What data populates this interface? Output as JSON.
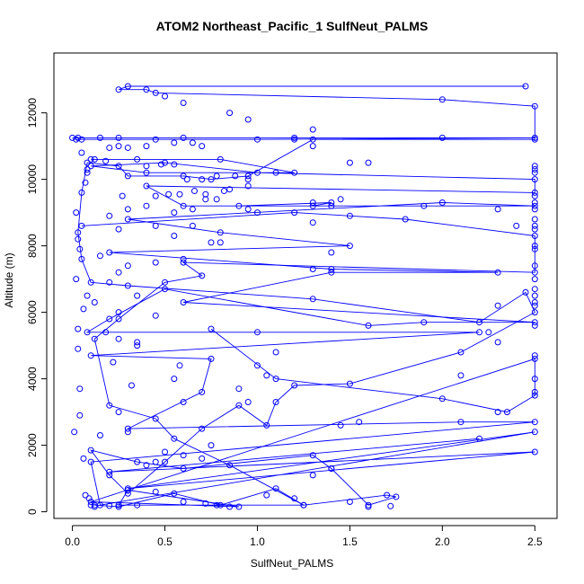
{
  "chart_data": {
    "type": "line",
    "title": "ATOM2 Northeast_Pacific_1 SulfNeut_PALMS",
    "xlabel": "SulfNeut_PALMS",
    "ylabel": "Altitude (m)",
    "xlim": [
      -0.1,
      2.62
    ],
    "ylim": [
      -200,
      13800
    ],
    "x_ticks": [
      0.0,
      0.5,
      1.0,
      1.5,
      2.0,
      2.5
    ],
    "x_tick_labels": [
      "0.0",
      "0.5",
      "1.0",
      "1.5",
      "2.0",
      "2.5"
    ],
    "y_ticks": [
      0,
      2000,
      4000,
      6000,
      8000,
      10000,
      12000
    ],
    "y_tick_labels": [
      "0",
      "2000",
      "4000",
      "6000",
      "8000",
      "10000",
      "12000"
    ],
    "grid": false,
    "legend": "none",
    "series_color": "#0000ff",
    "marker": "open-circle",
    "series": [
      {
        "points": [
          [
            0.12,
            200
          ],
          [
            0.25,
            150
          ],
          [
            0.55,
            550
          ],
          [
            0.8,
            200
          ],
          [
            1.1,
            700
          ],
          [
            1.25,
            200
          ],
          [
            1.7,
            500
          ],
          [
            1.75,
            450
          ],
          [
            1.6,
            200
          ],
          [
            1.4,
            1300
          ],
          [
            1.3,
            1700
          ],
          [
            0.6,
            1300
          ],
          [
            0.35,
            1500
          ],
          [
            0.1,
            1850
          ],
          [
            0.2,
            1100
          ],
          [
            0.3,
            550
          ],
          [
            0.5,
            1500
          ],
          [
            0.7,
            2500
          ],
          [
            0.9,
            3200
          ],
          [
            1.05,
            2600
          ],
          [
            1.1,
            3300
          ],
          [
            1.2,
            3800
          ],
          [
            1.5,
            3850
          ],
          [
            2.1,
            4800
          ],
          [
            2.5,
            6000
          ],
          [
            2.45,
            6600
          ],
          [
            2.2,
            5700
          ],
          [
            1.3,
            6400
          ],
          [
            0.3,
            6800
          ],
          [
            0.1,
            6900
          ],
          [
            0.05,
            7600
          ],
          [
            0.03,
            8400
          ],
          [
            0.05,
            9600
          ],
          [
            0.08,
            10500
          ],
          [
            0.25,
            10400
          ],
          [
            0.3,
            10100
          ],
          [
            0.6,
            10100
          ],
          [
            0.75,
            10000
          ],
          [
            0.95,
            10100
          ],
          [
            1.3,
            11200
          ],
          [
            2.5,
            11200
          ],
          [
            2.5,
            12200
          ],
          [
            2.0,
            12400
          ],
          [
            0.45,
            12600
          ],
          [
            0.4,
            12700
          ],
          [
            0.25,
            12700
          ],
          [
            0.3,
            12800
          ],
          [
            2.45,
            12800
          ]
        ]
      },
      {
        "points": [
          [
            0.02,
            11200
          ],
          [
            0.45,
            11200
          ],
          [
            1.0,
            11200
          ],
          [
            2.5,
            11250
          ],
          [
            2.0,
            11250
          ],
          [
            1.2,
            11250
          ],
          [
            0.6,
            11250
          ],
          [
            0.25,
            11250
          ],
          [
            0.0,
            11250
          ]
        ]
      },
      {
        "points": [
          [
            0.1,
            10600
          ],
          [
            0.8,
            10600
          ],
          [
            1.2,
            10200
          ],
          [
            0.4,
            10200
          ],
          [
            0.1,
            10400
          ],
          [
            0.5,
            10500
          ],
          [
            1.0,
            10200
          ],
          [
            2.5,
            10000
          ],
          [
            2.5,
            9600
          ],
          [
            0.4,
            9800
          ],
          [
            0.6,
            9200
          ],
          [
            1.3,
            9200
          ],
          [
            1.4,
            9300
          ],
          [
            0.9,
            9200
          ],
          [
            2.5,
            9200
          ],
          [
            2.0,
            9300
          ],
          [
            0.3,
            8800
          ],
          [
            0.8,
            8400
          ],
          [
            1.5,
            8000
          ],
          [
            0.2,
            7800
          ],
          [
            1.4,
            7300
          ],
          [
            2.3,
            7200
          ],
          [
            1.4,
            7200
          ],
          [
            0.6,
            6300
          ],
          [
            2.5,
            5700
          ],
          [
            1.9,
            5700
          ],
          [
            1.6,
            5600
          ],
          [
            0.5,
            6700
          ],
          [
            0.2,
            5800
          ],
          [
            0.08,
            5400
          ],
          [
            2.2,
            5400
          ],
          [
            0.1,
            4700
          ],
          [
            0.75,
            4600
          ],
          [
            0.7,
            3600
          ],
          [
            0.3,
            2500
          ],
          [
            2.1,
            2700
          ],
          [
            2.5,
            2700
          ],
          [
            0.1,
            1500
          ],
          [
            0.15,
            200
          ],
          [
            2.5,
            2400
          ],
          [
            0.3,
            700
          ],
          [
            2.5,
            1800
          ],
          [
            0.2,
            1200
          ],
          [
            2.2,
            2200
          ]
        ]
      },
      {
        "points": [
          [
            0.05,
            8600
          ],
          [
            1.2,
            9000
          ],
          [
            1.8,
            8800
          ],
          [
            2.5,
            8300
          ],
          [
            2.5,
            7200
          ],
          [
            0.6,
            7500
          ],
          [
            0.7,
            7100
          ],
          [
            0.5,
            6900
          ],
          [
            0.25,
            5800
          ],
          [
            0.12,
            5200
          ],
          [
            0.2,
            3200
          ],
          [
            0.45,
            2800
          ],
          [
            0.55,
            2200
          ],
          [
            0.85,
            1400
          ],
          [
            1.25,
            200
          ],
          [
            0.25,
            200
          ],
          [
            0.3,
            650
          ],
          [
            0.9,
            150
          ],
          [
            0.1,
            300
          ],
          [
            2.5,
            4600
          ],
          [
            2.5,
            3500
          ],
          [
            2.35,
            3000
          ],
          [
            2.0,
            3400
          ],
          [
            1.1,
            4000
          ],
          [
            0.75,
            5500
          ]
        ]
      }
    ],
    "scatter_points": [
      [
        0.05,
        10800
      ],
      [
        0.08,
        10300
      ],
      [
        0.12,
        10600
      ],
      [
        0.18,
        10550
      ],
      [
        0.25,
        11000
      ],
      [
        0.3,
        10950
      ],
      [
        0.35,
        10600
      ],
      [
        0.4,
        10400
      ],
      [
        0.48,
        10450
      ],
      [
        0.55,
        10450
      ],
      [
        0.62,
        10000
      ],
      [
        0.7,
        10000
      ],
      [
        0.78,
        10100
      ],
      [
        0.88,
        10100
      ],
      [
        0.52,
        9550
      ],
      [
        0.58,
        9550
      ],
      [
        0.66,
        9650
      ],
      [
        0.72,
        9550
      ],
      [
        0.82,
        9650
      ],
      [
        0.95,
        10000
      ],
      [
        0.95,
        9100
      ],
      [
        1.0,
        9000
      ],
      [
        1.5,
        10500
      ],
      [
        1.6,
        10500
      ],
      [
        2.5,
        10400
      ],
      [
        2.5,
        10300
      ],
      [
        2.5,
        10200
      ],
      [
        2.5,
        9500
      ],
      [
        2.5,
        9300
      ],
      [
        2.5,
        9100
      ],
      [
        2.5,
        8800
      ],
      [
        2.5,
        8600
      ],
      [
        2.5,
        8500
      ],
      [
        2.4,
        8600
      ],
      [
        2.5,
        8000
      ],
      [
        2.5,
        7900
      ],
      [
        2.5,
        7400
      ],
      [
        2.5,
        7000
      ],
      [
        2.5,
        6700
      ],
      [
        2.5,
        6500
      ],
      [
        2.5,
        6300
      ],
      [
        2.5,
        6200
      ],
      [
        2.5,
        5600
      ],
      [
        2.5,
        4700
      ],
      [
        2.5,
        4000
      ],
      [
        2.5,
        3600
      ],
      [
        2.3,
        3000
      ],
      [
        2.1,
        4100
      ],
      [
        2.3,
        6200
      ],
      [
        2.25,
        5400
      ],
      [
        2.3,
        5100
      ],
      [
        1.45,
        2600
      ],
      [
        1.55,
        2700
      ],
      [
        1.4,
        1300
      ],
      [
        1.3,
        1100
      ],
      [
        1.3,
        7300
      ],
      [
        1.4,
        7800
      ],
      [
        1.3,
        8700
      ],
      [
        1.5,
        8900
      ],
      [
        1.3,
        11500
      ],
      [
        1.3,
        11000
      ],
      [
        0.7,
        11000
      ],
      [
        0.65,
        11100
      ],
      [
        0.55,
        11100
      ],
      [
        0.4,
        11000
      ],
      [
        0.2,
        10950
      ],
      [
        0.15,
        11250
      ],
      [
        0.05,
        11200
      ],
      [
        0.03,
        11250
      ],
      [
        0.08,
        10200
      ],
      [
        0.07,
        9900
      ],
      [
        0.02,
        9000
      ],
      [
        0.03,
        8200
      ],
      [
        0.04,
        7900
      ],
      [
        0.02,
        7000
      ],
      [
        0.03,
        5500
      ],
      [
        0.03,
        4900
      ],
      [
        0.04,
        3700
      ],
      [
        0.04,
        2900
      ],
      [
        0.01,
        2400
      ],
      [
        0.06,
        1600
      ],
      [
        0.07,
        500
      ],
      [
        0.09,
        400
      ],
      [
        0.1,
        200
      ],
      [
        0.12,
        150
      ],
      [
        0.2,
        180
      ],
      [
        0.35,
        200
      ],
      [
        0.45,
        600
      ],
      [
        0.6,
        300
      ],
      [
        0.72,
        250
      ],
      [
        0.78,
        200
      ],
      [
        0.85,
        150
      ],
      [
        1.05,
        500
      ],
      [
        1.2,
        400
      ],
      [
        1.5,
        300
      ],
      [
        1.6,
        150
      ],
      [
        1.72,
        170
      ],
      [
        0.15,
        2300
      ],
      [
        0.3,
        2400
      ],
      [
        0.4,
        1400
      ],
      [
        0.45,
        1500
      ],
      [
        0.5,
        1800
      ],
      [
        0.6,
        1700
      ],
      [
        0.7,
        1600
      ],
      [
        0.75,
        2000
      ],
      [
        0.6,
        3300
      ],
      [
        0.55,
        4000
      ],
      [
        0.58,
        4400
      ],
      [
        0.9,
        3700
      ],
      [
        0.95,
        3300
      ],
      [
        1.0,
        4400
      ],
      [
        1.0,
        5400
      ],
      [
        1.05,
        4100
      ],
      [
        1.1,
        4800
      ],
      [
        0.35,
        5100
      ],
      [
        0.45,
        5900
      ],
      [
        0.22,
        4500
      ],
      [
        0.32,
        3800
      ],
      [
        0.25,
        3000
      ],
      [
        0.25,
        6000
      ],
      [
        0.2,
        6900
      ],
      [
        0.25,
        7200
      ],
      [
        0.3,
        7400
      ],
      [
        0.35,
        6500
      ],
      [
        0.45,
        7500
      ],
      [
        0.45,
        8600
      ],
      [
        0.55,
        8300
      ],
      [
        0.6,
        7600
      ],
      [
        0.65,
        8600
      ],
      [
        0.75,
        8100
      ],
      [
        0.8,
        8100
      ],
      [
        0.27,
        9500
      ],
      [
        0.3,
        9100
      ],
      [
        0.4,
        9200
      ],
      [
        0.45,
        9500
      ],
      [
        0.55,
        9000
      ],
      [
        0.65,
        9100
      ],
      [
        0.72,
        9400
      ],
      [
        0.78,
        9400
      ],
      [
        0.85,
        9700
      ],
      [
        0.95,
        9800
      ],
      [
        1.3,
        9300
      ],
      [
        1.4,
        9200
      ],
      [
        1.45,
        9400
      ],
      [
        2.3,
        9100
      ],
      [
        1.9,
        9200
      ],
      [
        0.5,
        12500
      ],
      [
        0.6,
        12300
      ],
      [
        0.85,
        12000
      ],
      [
        0.95,
        11800
      ],
      [
        1.1,
        10200
      ],
      [
        1.2,
        11200
      ],
      [
        0.2,
        8900
      ],
      [
        0.25,
        8500
      ],
      [
        0.15,
        7700
      ],
      [
        0.12,
        6300
      ],
      [
        0.08,
        6500
      ],
      [
        0.06,
        6100
      ],
      [
        0.18,
        5400
      ],
      [
        0.25,
        5200
      ],
      [
        0.35,
        5000
      ]
    ]
  }
}
